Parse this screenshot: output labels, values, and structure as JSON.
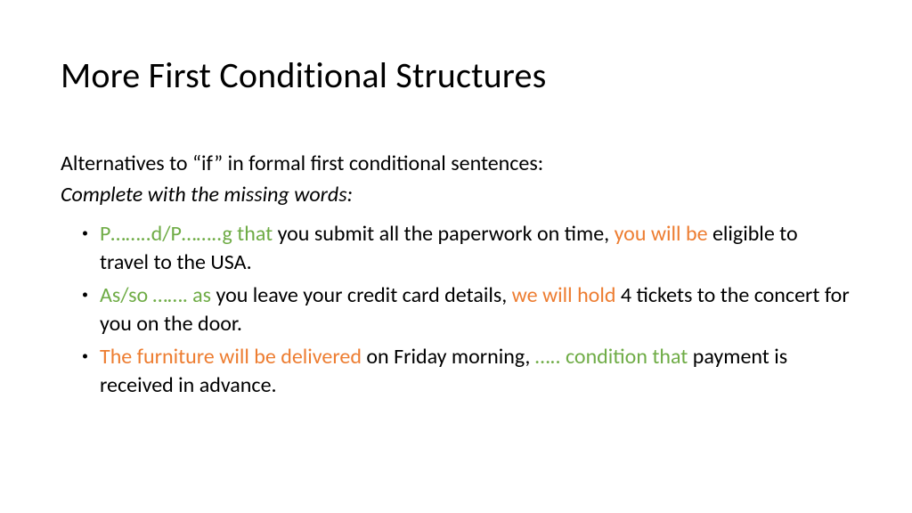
{
  "title": "More First Conditional Structures",
  "subtitle": "Alternatives to “if” in formal first conditional sentences:",
  "instruction": "Complete with the missing words:",
  "colors": {
    "green": "#6fac46",
    "orange": "#ed7d31",
    "black": "#000000",
    "background": "#ffffff"
  },
  "typography": {
    "title_fontsize": 40,
    "body_fontsize": 24,
    "font_family": "Calibri"
  },
  "items": [
    {
      "parts": [
        {
          "text": "P……..d/P……..g that ",
          "cls": "green"
        },
        {
          "text": "you submit all the paperwork on time, ",
          "cls": ""
        },
        {
          "text": "you will be ",
          "cls": "orange"
        },
        {
          "text": "eligible to travel to the USA.",
          "cls": ""
        }
      ]
    },
    {
      "parts": [
        {
          "text": "As/so ……. as ",
          "cls": "green"
        },
        {
          "text": "you leave your credit card details, ",
          "cls": ""
        },
        {
          "text": "we will hold ",
          "cls": "orange"
        },
        {
          "text": "4 tickets to the concert for you on the door.",
          "cls": ""
        }
      ]
    },
    {
      "parts": [
        {
          "text": "The furniture will be delivered ",
          "cls": "orange"
        },
        {
          "text": "on Friday morning, ",
          "cls": ""
        },
        {
          "text": "….. condition that ",
          "cls": "green"
        },
        {
          "text": "payment is received in advance.",
          "cls": ""
        }
      ]
    }
  ]
}
